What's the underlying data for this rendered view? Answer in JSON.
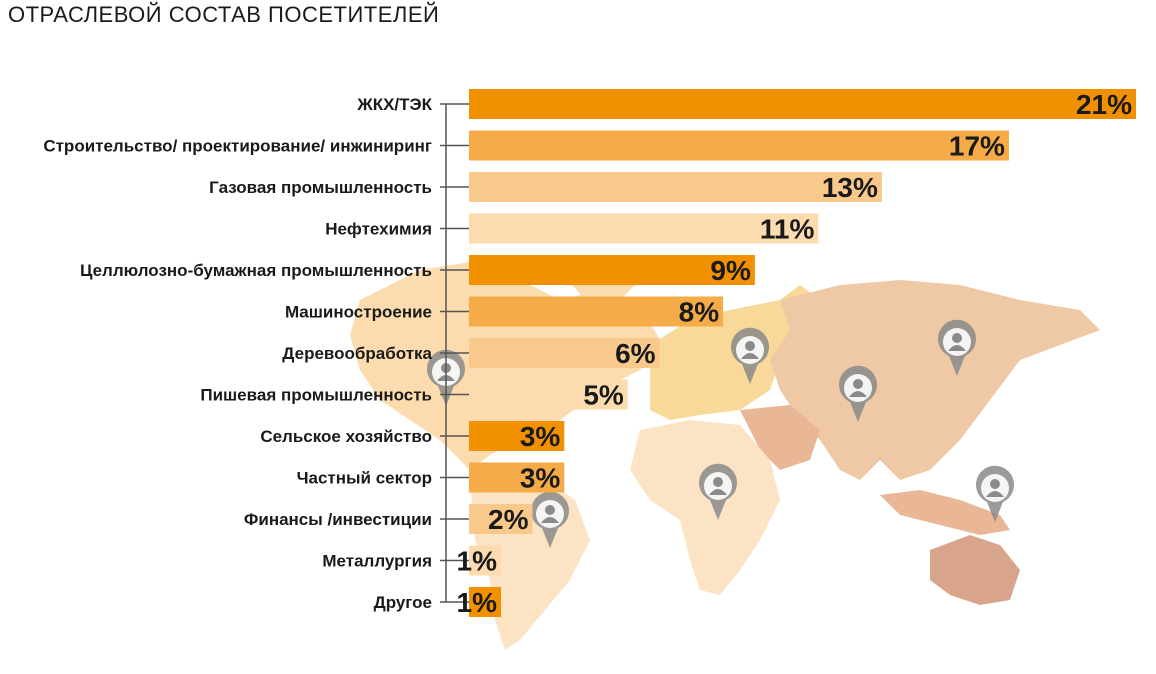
{
  "chart_data": {
    "type": "bar",
    "orientation": "horizontal",
    "title": "ОТРАСЛЕВОЙ СОСТАВ ПОСЕТИТЕЛЕЙ",
    "categories": [
      "ЖКХ/ТЭК",
      "Строительство/ проектирование/ инжиниринг",
      "Газовая промышленность",
      "Нефтехимия",
      "Целлюлозно-бумажная промышленность",
      "Машиностроение",
      "Деревообработка",
      "Пишевая промышленность",
      "Сельское хозяйство",
      "Частный сектор",
      "Финансы /инвестиции",
      "Металлургия",
      "Другое"
    ],
    "values": [
      21,
      17,
      13,
      11,
      9,
      8,
      6,
      5,
      3,
      3,
      2,
      1,
      1
    ],
    "value_labels": [
      "21%",
      "17%",
      "13%",
      "11%",
      "9%",
      "8%",
      "6%",
      "5%",
      "3%",
      "3%",
      "2%",
      "1%",
      "1%"
    ],
    "unit": "%",
    "xlim": [
      0,
      21
    ],
    "grid": false,
    "legend": "none",
    "colors": {
      "dark": "#f29100",
      "medium": "#f5ab47",
      "light": "#f9c98c",
      "pale": "#fcdcae",
      "axis": "#555555",
      "map_light": "#fbe3c4",
      "map_yellow": "#f9d99a",
      "map_asia": "#efc9a6",
      "map_middle": "#e9b796",
      "map_australia": "#d9a48c",
      "pin": "#8a8a8a"
    },
    "bar_color_pattern": [
      "dark",
      "medium",
      "light",
      "pale"
    ]
  }
}
